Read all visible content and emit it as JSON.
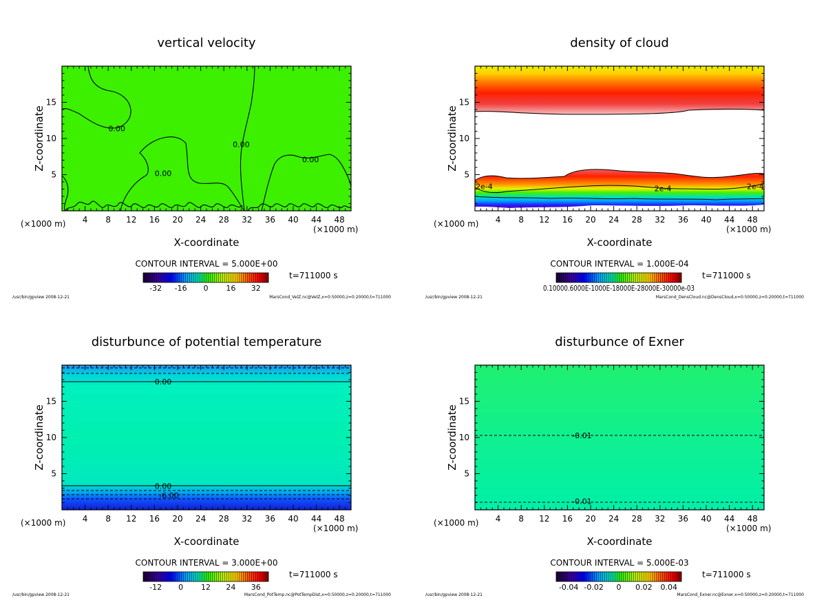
{
  "chart_data": [
    {
      "type": "heatmap",
      "title": "vertical velocity",
      "xlabel": "X-coordinate",
      "ylabel": "Z-coordinate",
      "x_unit": "(×1000 m)",
      "xlim": [
        0,
        50
      ],
      "ylim": [
        0,
        20
      ],
      "xticks": [
        4,
        8,
        12,
        16,
        20,
        24,
        28,
        32,
        36,
        40,
        44,
        48
      ],
      "yticks": [
        5,
        10,
        15
      ],
      "contour_interval": "CONTOUR INTERVAL = 5.000E+00",
      "time_label": "t=711000 s",
      "colorbar_ticks": [
        "-32",
        "-16",
        "0",
        "16",
        "32"
      ],
      "colorbar_range": [
        -40,
        40
      ],
      "contour_labels": [
        {
          "text": "0.00",
          "x": 9.5,
          "y": 11.4
        },
        {
          "text": "0.00",
          "x": 17.5,
          "y": 5.2
        },
        {
          "text": "0.00",
          "x": 31,
          "y": 9.2
        },
        {
          "text": "0.00",
          "x": 43,
          "y": 7.1
        }
      ],
      "field_color": "#3cf000",
      "footer_left": "/usr/bin/gpview  2008-12-21",
      "footer_right": "MarsCond_VelZ.nc@VelZ,x=0:50000,z=0:20000,t=711000"
    },
    {
      "type": "heatmap",
      "title": "density of cloud",
      "xlabel": "X-coordinate",
      "ylabel": "Z-coordinate",
      "x_unit": "(×1000 m)",
      "xlim": [
        0,
        50
      ],
      "ylim": [
        0,
        20
      ],
      "xticks": [
        4,
        8,
        12,
        16,
        20,
        24,
        28,
        32,
        36,
        40,
        44,
        48
      ],
      "yticks": [
        5,
        10,
        15
      ],
      "contour_interval": "CONTOUR INTERVAL = 1.000E-04",
      "time_label": "t=711000 s",
      "colorbar_ticks": [
        "0.10000.6000E-1000E-18000E-28000E-30000e-03"
      ],
      "contour_labels": [
        {
          "text": "2e-4",
          "x": 1.6,
          "y": 3.4
        },
        {
          "text": "2e-4",
          "x": 32.5,
          "y": 3.1
        },
        {
          "text": "2e-4",
          "x": 48.5,
          "y": 3.4
        }
      ],
      "footer_left": "/usr/bin/gpview  2008-12-21",
      "footer_right": "MarsCond_DensCloud.nc@DensCloud,x=0:50000,z=0:20000,t=711000"
    },
    {
      "type": "heatmap",
      "title": "disturbunce of potential temperature",
      "xlabel": "X-coordinate",
      "ylabel": "Z-coordinate",
      "x_unit": "(×1000 m)",
      "xlim": [
        0,
        50
      ],
      "ylim": [
        0,
        20
      ],
      "xticks": [
        4,
        8,
        12,
        16,
        20,
        24,
        28,
        32,
        36,
        40,
        44,
        48
      ],
      "yticks": [
        5,
        10,
        15
      ],
      "contour_interval": "CONTOUR INTERVAL = 3.000E+00",
      "time_label": "t=711000 s",
      "colorbar_ticks": [
        "-12",
        "0",
        "12",
        "24",
        "36"
      ],
      "colorbar_range": [
        -18,
        42
      ],
      "contour_labels": [
        {
          "text": "0.00",
          "x": 17.5,
          "y": 17.7
        },
        {
          "text": "0.00",
          "x": 17.5,
          "y": 3.3
        },
        {
          "text": "-6.00",
          "x": 18.5,
          "y": 2.0
        }
      ],
      "footer_left": "/usr/bin/gpview  2008-12-21",
      "footer_right": "MarsCond_PotTemp.nc@PotTempDist,x=0:50000,z=0:20000,t=711000"
    },
    {
      "type": "heatmap",
      "title": "disturbunce of Exner",
      "xlabel": "X-coordinate",
      "ylabel": "Z-coordinate",
      "x_unit": "(×1000 m)",
      "xlim": [
        0,
        50
      ],
      "ylim": [
        0,
        20
      ],
      "xticks": [
        4,
        8,
        12,
        16,
        20,
        24,
        28,
        32,
        36,
        40,
        44,
        48
      ],
      "yticks": [
        5,
        10,
        15
      ],
      "contour_interval": "CONTOUR INTERVAL = 5.000E-03",
      "time_label": "t=711000 s",
      "colorbar_ticks": [
        "-0.04",
        "-0.02",
        "0",
        "0.02",
        "0.04"
      ],
      "colorbar_range": [
        -0.05,
        0.05
      ],
      "contour_labels": [
        {
          "text": "-0.01",
          "x": 18.5,
          "y": 10.3
        },
        {
          "text": "-0.01",
          "x": 18.5,
          "y": 1.2
        }
      ],
      "footer_left": "/usr/bin/gpview  2008-12-21",
      "footer_right": "MarsCond_Exner.nc@Exner,x=0:50000,z=0:20000,t=711000"
    }
  ]
}
